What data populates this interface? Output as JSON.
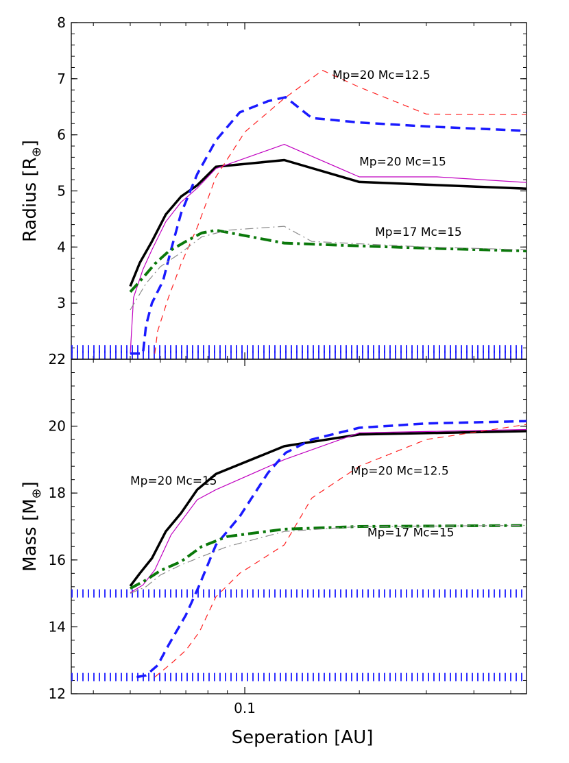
{
  "chart_data": [
    {
      "type": "line",
      "panel": "top",
      "xscale": "log",
      "xlim": [
        0.035,
        0.55
      ],
      "ylim": [
        2,
        8
      ],
      "ylabel": "Radius [R",
      "ylabel_symbol": "⊕",
      "ylabel_close": "]",
      "yticks": [
        "2",
        "3",
        "4",
        "5",
        "6",
        "7",
        "8"
      ],
      "hlines": [
        {
          "name": "radius-floor-upper",
          "y": 2.18,
          "color": "#1a1aff"
        },
        {
          "name": "radius-floor-lower",
          "y": 2.08,
          "color": "#1a1aff"
        }
      ],
      "series": [
        {
          "name": "black-solid",
          "color": "#000000",
          "style": "solid",
          "width": 3.5,
          "points": [
            [
              0.05,
              3.3
            ],
            [
              0.053,
              3.72
            ],
            [
              0.057,
              4.1
            ],
            [
              0.062,
              4.58
            ],
            [
              0.068,
              4.9
            ],
            [
              0.075,
              5.1
            ],
            [
              0.084,
              5.43
            ],
            [
              0.127,
              5.55
            ],
            [
              0.2,
              5.16
            ],
            [
              0.55,
              5.04
            ]
          ]
        },
        {
          "name": "magenta-thin",
          "color": "#c000c0",
          "style": "solid",
          "width": 1.2,
          "points": [
            [
              0.05,
              2.1
            ],
            [
              0.051,
              3.1
            ],
            [
              0.054,
              3.6
            ],
            [
              0.057,
              3.95
            ],
            [
              0.062,
              4.45
            ],
            [
              0.068,
              4.8
            ],
            [
              0.075,
              5.05
            ],
            [
              0.084,
              5.4
            ],
            [
              0.127,
              5.83
            ],
            [
              0.2,
              5.25
            ],
            [
              0.32,
              5.25
            ],
            [
              0.55,
              5.15
            ]
          ]
        },
        {
          "name": "blue-dashed-thick",
          "color": "#1a1aff",
          "style": "dashed-thick",
          "width": 3.5,
          "points": [
            [
              0.05,
              2.1
            ],
            [
              0.054,
              2.1
            ],
            [
              0.055,
              2.6
            ],
            [
              0.057,
              3.0
            ],
            [
              0.061,
              3.4
            ],
            [
              0.064,
              3.95
            ],
            [
              0.068,
              4.6
            ],
            [
              0.075,
              5.3
            ],
            [
              0.084,
              5.9
            ],
            [
              0.097,
              6.4
            ],
            [
              0.115,
              6.6
            ],
            [
              0.128,
              6.67
            ],
            [
              0.15,
              6.3
            ],
            [
              0.2,
              6.22
            ],
            [
              0.3,
              6.15
            ],
            [
              0.55,
              6.07
            ]
          ]
        },
        {
          "name": "red-dashed-thin",
          "color": "#ff2020",
          "style": "dashed",
          "width": 1.2,
          "points": [
            [
              0.058,
              2.1
            ],
            [
              0.059,
              2.5
            ],
            [
              0.063,
              3.1
            ],
            [
              0.068,
              3.7
            ],
            [
              0.075,
              4.35
            ],
            [
              0.084,
              5.25
            ],
            [
              0.1,
              6.05
            ],
            [
              0.127,
              6.65
            ],
            [
              0.16,
              7.15
            ],
            [
              0.2,
              6.85
            ],
            [
              0.3,
              6.37
            ],
            [
              0.55,
              6.36
            ]
          ]
        },
        {
          "name": "green-dashdot-thick",
          "color": "#0a780a",
          "style": "dashdot-thick",
          "width": 4,
          "points": [
            [
              0.05,
              3.2
            ],
            [
              0.054,
              3.45
            ],
            [
              0.058,
              3.7
            ],
            [
              0.063,
              3.92
            ],
            [
              0.07,
              4.1
            ],
            [
              0.077,
              4.25
            ],
            [
              0.084,
              4.3
            ],
            [
              0.127,
              4.07
            ],
            [
              0.2,
              4.02
            ],
            [
              0.3,
              3.98
            ],
            [
              0.55,
              3.93
            ]
          ]
        },
        {
          "name": "gray-dashdot-thin",
          "color": "#8c8c8c",
          "style": "dashdot",
          "width": 1.2,
          "points": [
            [
              0.05,
              2.88
            ],
            [
              0.055,
              3.35
            ],
            [
              0.06,
              3.65
            ],
            [
              0.068,
              3.9
            ],
            [
              0.077,
              4.18
            ],
            [
              0.09,
              4.3
            ],
            [
              0.127,
              4.37
            ],
            [
              0.15,
              4.1
            ],
            [
              0.3,
              4.0
            ],
            [
              0.55,
              3.95
            ]
          ]
        }
      ],
      "annotations": [
        {
          "text": "Mp=20 Mc=12.5",
          "x": 0.17,
          "y": 7.0
        },
        {
          "text": "Mp=20 Mc=15",
          "x": 0.2,
          "y": 5.45
        },
        {
          "text": "Mp=17 Mc=15",
          "x": 0.22,
          "y": 4.2
        }
      ]
    },
    {
      "type": "line",
      "panel": "bottom",
      "xscale": "log",
      "xlim": [
        0.035,
        0.55
      ],
      "ylim": [
        12,
        22
      ],
      "xlabel": "Seperation [AU]",
      "xticks": [
        {
          "value": 0.1,
          "label": "0.1"
        }
      ],
      "ylabel": "Mass [M",
      "ylabel_symbol": "⊕",
      "ylabel_close": "]",
      "yticks": [
        "12",
        "14",
        "16",
        "18",
        "20",
        "22"
      ],
      "hlines": [
        {
          "name": "core-mass-15",
          "y": 15.0,
          "color": "#1a1aff"
        },
        {
          "name": "core-mass-12-5",
          "y": 12.5,
          "color": "#1a1aff"
        }
      ],
      "series": [
        {
          "name": "black-solid",
          "color": "#000000",
          "style": "solid",
          "width": 3.5,
          "points": [
            [
              0.05,
              15.22
            ],
            [
              0.053,
              15.6
            ],
            [
              0.057,
              16.05
            ],
            [
              0.062,
              16.85
            ],
            [
              0.068,
              17.4
            ],
            [
              0.075,
              18.1
            ],
            [
              0.084,
              18.57
            ],
            [
              0.127,
              19.4
            ],
            [
              0.2,
              19.75
            ],
            [
              0.55,
              19.85
            ]
          ]
        },
        {
          "name": "magenta-thin",
          "color": "#c000c0",
          "style": "solid",
          "width": 1.2,
          "points": [
            [
              0.05,
              15.02
            ],
            [
              0.054,
              15.25
            ],
            [
              0.058,
              15.7
            ],
            [
              0.064,
              16.75
            ],
            [
              0.075,
              17.8
            ],
            [
              0.084,
              18.1
            ],
            [
              0.127,
              19.0
            ],
            [
              0.2,
              19.8
            ],
            [
              0.55,
              19.9
            ]
          ]
        },
        {
          "name": "blue-dashed-thick",
          "color": "#1a1aff",
          "style": "dashed-thick",
          "width": 3.5,
          "points": [
            [
              0.052,
              12.5
            ],
            [
              0.055,
              12.55
            ],
            [
              0.059,
              12.85
            ],
            [
              0.063,
              13.45
            ],
            [
              0.07,
              14.35
            ],
            [
              0.076,
              15.25
            ],
            [
              0.084,
              16.45
            ],
            [
              0.097,
              17.3
            ],
            [
              0.115,
              18.6
            ],
            [
              0.128,
              19.2
            ],
            [
              0.15,
              19.6
            ],
            [
              0.2,
              19.95
            ],
            [
              0.3,
              20.08
            ],
            [
              0.55,
              20.15
            ]
          ]
        },
        {
          "name": "red-dashed-thin",
          "color": "#ff2020",
          "style": "dashed",
          "width": 1.2,
          "points": [
            [
              0.058,
              12.5
            ],
            [
              0.064,
              12.9
            ],
            [
              0.07,
              13.3
            ],
            [
              0.076,
              13.85
            ],
            [
              0.084,
              14.9
            ],
            [
              0.097,
              15.6
            ],
            [
              0.127,
              16.45
            ],
            [
              0.15,
              17.85
            ],
            [
              0.2,
              18.8
            ],
            [
              0.3,
              19.6
            ],
            [
              0.55,
              20.05
            ]
          ]
        },
        {
          "name": "green-dashdot-thick",
          "color": "#0a780a",
          "style": "dashdot-thick",
          "width": 4,
          "points": [
            [
              0.05,
              15.15
            ],
            [
              0.055,
              15.4
            ],
            [
              0.06,
              15.68
            ],
            [
              0.068,
              15.95
            ],
            [
              0.077,
              16.4
            ],
            [
              0.09,
              16.7
            ],
            [
              0.127,
              16.92
            ],
            [
              0.2,
              17.0
            ],
            [
              0.55,
              17.03
            ]
          ]
        },
        {
          "name": "gray-dashdot-thin",
          "color": "#8c8c8c",
          "style": "dashdot",
          "width": 1.2,
          "points": [
            [
              0.05,
              15.0
            ],
            [
              0.055,
              15.2
            ],
            [
              0.06,
              15.55
            ],
            [
              0.068,
              15.85
            ],
            [
              0.077,
              16.1
            ],
            [
              0.09,
              16.4
            ],
            [
              0.127,
              16.85
            ],
            [
              0.2,
              17.0
            ],
            [
              0.55,
              17.03
            ]
          ]
        }
      ],
      "annotations": [
        {
          "text": "Mp=20 Mc=15",
          "x": 0.05,
          "y": 18.25
        },
        {
          "text": "Mp=20 Mc=12.5",
          "x": 0.19,
          "y": 18.55
        },
        {
          "text": "Mp=17 Mc=15",
          "x": 0.21,
          "y": 16.7
        }
      ]
    }
  ]
}
